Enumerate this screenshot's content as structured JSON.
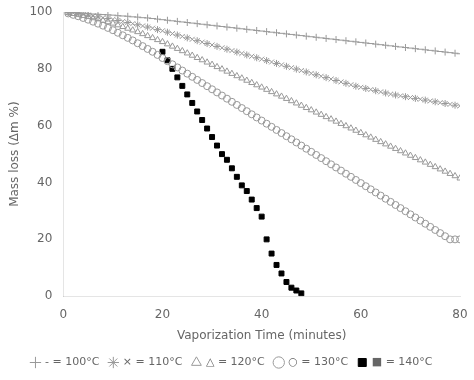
{
  "chart_data": {
    "type": "scatter",
    "xlabel": "Vaporization Time (minutes)",
    "ylabel": "Mass loss (Δm %)",
    "xlim": [
      0,
      80
    ],
    "ylim": [
      0,
      100
    ],
    "xticks": [
      0,
      20,
      40,
      60,
      80
    ],
    "yticks": [
      0,
      20,
      40,
      60,
      80,
      100
    ],
    "grid": false,
    "legend": "bottom",
    "series": [
      {
        "name": "- = 100°C",
        "color": "#999999",
        "marker": "plus_dash",
        "x": [
          1,
          2,
          3,
          4,
          5,
          6,
          7,
          8,
          9,
          10,
          11,
          12,
          13,
          14,
          15,
          16,
          17,
          18,
          19,
          20,
          21,
          22,
          23,
          24,
          25,
          26,
          27,
          28,
          29,
          30,
          31,
          32,
          33,
          34,
          35,
          36,
          37,
          38,
          39,
          40,
          41,
          42,
          43,
          44,
          45,
          46,
          47,
          48,
          49,
          50,
          51,
          52,
          53,
          54,
          55,
          56,
          57,
          58,
          59,
          60,
          61,
          62,
          63,
          64,
          65,
          66,
          67,
          68,
          69,
          70,
          71,
          72,
          73,
          74,
          75,
          76,
          77,
          78,
          79,
          80
        ],
        "values": [
          99.9,
          99.8,
          99.7,
          99.6,
          99.5,
          99.3,
          99.2,
          99.1,
          99.0,
          98.9,
          98.7,
          98.6,
          98.5,
          98.3,
          98.2,
          98.0,
          97.9,
          97.7,
          97.5,
          97.3,
          97.1,
          96.9,
          96.7,
          96.5,
          96.3,
          96.1,
          95.9,
          95.7,
          95.5,
          95.3,
          95.1,
          94.9,
          94.7,
          94.5,
          94.3,
          94.1,
          93.9,
          93.7,
          93.5,
          93.3,
          93.1,
          92.9,
          92.7,
          92.5,
          92.3,
          92.1,
          91.9,
          91.7,
          91.5,
          91.3,
          91.1,
          90.9,
          90.7,
          90.5,
          90.3,
          90.1,
          89.9,
          89.7,
          89.5,
          89.3,
          89.1,
          88.9,
          88.7,
          88.5,
          88.3,
          88.1,
          87.9,
          87.7,
          87.5,
          87.3,
          87.1,
          86.9,
          86.7,
          86.5,
          86.3,
          86.1,
          85.9,
          85.7,
          85.5,
          85.3
        ]
      },
      {
        "name": "× = 110°C",
        "color": "#999999",
        "marker": "star_x",
        "x": [
          1,
          2,
          3,
          4,
          5,
          6,
          7,
          8,
          9,
          10,
          11,
          12,
          13,
          14,
          15,
          16,
          17,
          18,
          19,
          20,
          21,
          22,
          23,
          24,
          25,
          26,
          27,
          28,
          29,
          30,
          31,
          32,
          33,
          34,
          35,
          36,
          37,
          38,
          39,
          40,
          41,
          42,
          43,
          44,
          45,
          46,
          47,
          48,
          49,
          50,
          51,
          52,
          53,
          54,
          55,
          56,
          57,
          58,
          59,
          60,
          61,
          62,
          63,
          64,
          65,
          66,
          67,
          68,
          69,
          70,
          71,
          72,
          73,
          74,
          75,
          76,
          77,
          78,
          79,
          80
        ],
        "values": [
          99.8,
          99.6,
          99.4,
          99.1,
          98.9,
          98.6,
          98.3,
          98.0,
          97.7,
          97.4,
          97.0,
          96.7,
          96.3,
          95.9,
          95.5,
          95.1,
          94.7,
          94.3,
          93.8,
          93.4,
          92.9,
          92.4,
          91.9,
          91.4,
          90.9,
          90.4,
          89.9,
          89.4,
          88.9,
          88.4,
          87.9,
          87.4,
          86.9,
          86.4,
          85.9,
          85.4,
          84.9,
          84.4,
          83.9,
          83.4,
          82.9,
          82.4,
          81.9,
          81.4,
          80.9,
          80.4,
          79.9,
          79.4,
          78.9,
          78.4,
          77.9,
          77.4,
          76.9,
          76.4,
          75.9,
          75.4,
          74.9,
          74.4,
          73.9,
          73.5,
          73.1,
          72.7,
          72.3,
          71.9,
          71.5,
          71.1,
          70.8,
          70.5,
          70.2,
          69.9,
          69.6,
          69.3,
          69.0,
          68.7,
          68.4,
          68.1,
          67.8,
          67.5,
          67.2,
          67.0
        ]
      },
      {
        "name": "△ = 120°C",
        "color": "#999999",
        "marker": "open_triangle",
        "x": [
          1,
          2,
          3,
          4,
          5,
          6,
          7,
          8,
          9,
          10,
          11,
          12,
          13,
          14,
          15,
          16,
          17,
          18,
          19,
          20,
          21,
          22,
          23,
          24,
          25,
          26,
          27,
          28,
          29,
          30,
          31,
          32,
          33,
          34,
          35,
          36,
          37,
          38,
          39,
          40,
          41,
          42,
          43,
          44,
          45,
          46,
          47,
          48,
          49,
          50,
          51,
          52,
          53,
          54,
          55,
          56,
          57,
          58,
          59,
          60,
          61,
          62,
          63,
          64,
          65,
          66,
          67,
          68,
          69,
          70,
          71,
          72,
          73,
          74,
          75,
          76,
          77,
          78,
          79,
          80
        ],
        "values": [
          99.7,
          99.4,
          99.1,
          98.7,
          98.3,
          97.9,
          97.5,
          97.0,
          96.5,
          96.0,
          95.4,
          94.8,
          94.2,
          93.6,
          93.0,
          92.3,
          91.6,
          90.9,
          90.2,
          89.5,
          88.7,
          87.9,
          87.1,
          86.3,
          85.5,
          84.7,
          83.9,
          83.1,
          82.3,
          81.5,
          80.7,
          79.9,
          79.1,
          78.3,
          77.5,
          76.7,
          75.9,
          75.1,
          74.3,
          73.5,
          72.7,
          71.9,
          71.1,
          70.3,
          69.5,
          68.7,
          67.9,
          67.1,
          66.3,
          65.5,
          64.7,
          63.9,
          63.1,
          62.3,
          61.5,
          60.7,
          59.9,
          59.1,
          58.3,
          57.5,
          56.7,
          55.9,
          55.1,
          54.3,
          53.5,
          52.7,
          51.9,
          51.1,
          50.3,
          49.5,
          48.7,
          47.9,
          47.1,
          46.3,
          45.5,
          44.7,
          43.9,
          43.1,
          42.3,
          41.5
        ]
      },
      {
        "name": "○ = 130°C",
        "color": "#999999",
        "marker": "open_circle",
        "x": [
          1,
          2,
          3,
          4,
          5,
          6,
          7,
          8,
          9,
          10,
          11,
          12,
          13,
          14,
          15,
          16,
          17,
          18,
          19,
          20,
          21,
          22,
          23,
          24,
          25,
          26,
          27,
          28,
          29,
          30,
          31,
          32,
          33,
          34,
          35,
          36,
          37,
          38,
          39,
          40,
          41,
          42,
          43,
          44,
          45,
          46,
          47,
          48,
          49,
          50,
          51,
          52,
          53,
          54,
          55,
          56,
          57,
          58,
          59,
          60,
          61,
          62,
          63,
          64,
          65,
          66,
          67,
          68,
          69,
          70,
          71,
          72,
          73,
          74,
          75,
          76,
          77,
          78,
          79,
          80
        ],
        "values": [
          99.5,
          99.0,
          98.5,
          97.9,
          97.3,
          96.6,
          95.9,
          95.2,
          94.4,
          93.6,
          92.7,
          91.8,
          90.9,
          90.0,
          89.0,
          88.0,
          87.0,
          86.0,
          84.9,
          83.8,
          82.7,
          81.6,
          80.5,
          79.4,
          78.3,
          77.2,
          76.1,
          75.0,
          73.9,
          72.8,
          71.7,
          70.6,
          69.5,
          68.4,
          67.3,
          66.2,
          65.1,
          64.0,
          62.9,
          61.8,
          60.7,
          59.6,
          58.5,
          57.4,
          56.3,
          55.2,
          54.1,
          53.0,
          51.9,
          50.8,
          49.7,
          48.6,
          47.5,
          46.4,
          45.3,
          44.2,
          43.1,
          42.0,
          40.9,
          39.8,
          38.7,
          37.6,
          36.5,
          35.4,
          34.3,
          33.2,
          32.1,
          31.0,
          29.9,
          28.8,
          27.7,
          26.6,
          25.5,
          24.4,
          23.3,
          22.2,
          21.1,
          20.0,
          20.0,
          20.0
        ]
      },
      {
        "name": "■ = 140°C",
        "color": "#000000",
        "marker": "square",
        "x": [
          20,
          21,
          22,
          23,
          24,
          25,
          26,
          27,
          28,
          29,
          30,
          31,
          32,
          33,
          34,
          35,
          36,
          37,
          38,
          39,
          40,
          41,
          42,
          43,
          44,
          45,
          46,
          47,
          48
        ],
        "values": [
          86,
          83,
          80,
          77,
          74,
          71,
          68,
          65,
          62,
          59,
          56,
          53,
          50,
          48,
          45,
          42,
          39,
          37,
          34,
          31,
          28,
          20,
          15,
          11,
          8,
          5,
          3,
          2,
          1
        ]
      }
    ]
  }
}
